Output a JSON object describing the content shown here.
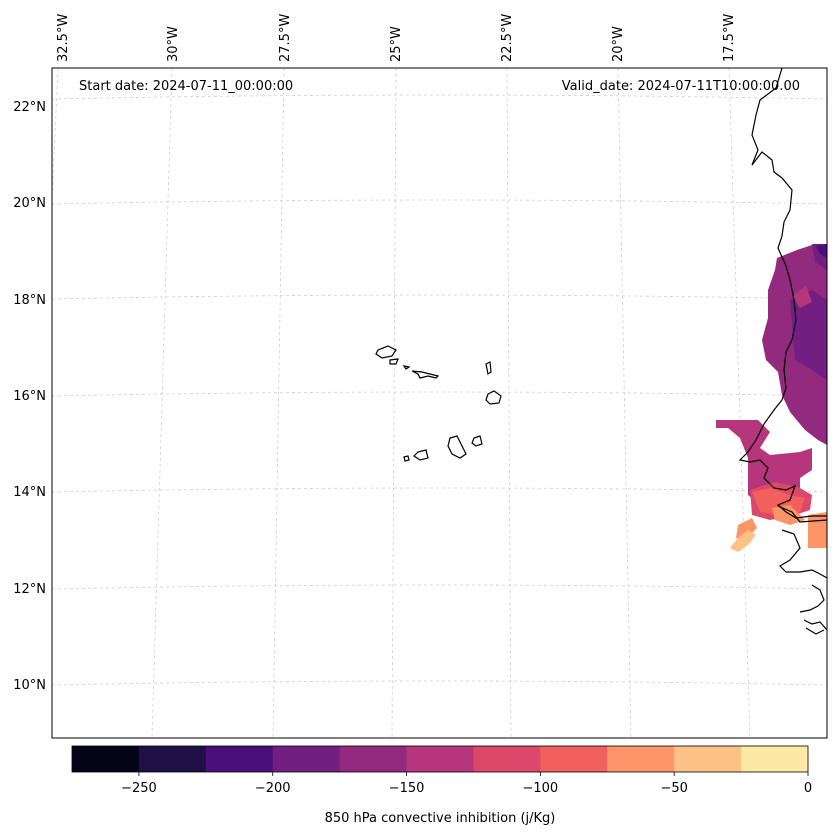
{
  "map": {
    "start_label": "Start date: 2024-07-11_00:00:00",
    "valid_label": "Valid_date: 2024-07-11T10:00:00.00",
    "lon_labels": [
      "32.5°W",
      "30°W",
      "27.5°W",
      "25°W",
      "22.5°W",
      "20°W",
      "17.5°W"
    ],
    "lat_labels": [
      "22°N",
      "20°N",
      "18°N",
      "16°N",
      "14°N",
      "12°N",
      "10°N"
    ],
    "extent": {
      "lon_min": -33.5,
      "lon_max": -15.0,
      "lat_min": 8.8,
      "lat_max": 22.8
    },
    "field": "850 hPa convective inhibition",
    "features": [
      "Cape Verde islands",
      "West African coastline (Senegal, Gambia, Guinea-Bissau, Mauritania)"
    ]
  },
  "colorbar": {
    "label": "850 hPa convective inhibition (j/Kg)",
    "ticks": [
      "−250",
      "−200",
      "−150",
      "−100",
      "−50",
      "0"
    ],
    "tick_values": [
      -250,
      -200,
      -150,
      -100,
      -50,
      0
    ],
    "range": [
      -275,
      0
    ],
    "bins": [
      {
        "min": -275,
        "max": -250,
        "color": "#050416"
      },
      {
        "min": -250,
        "max": -225,
        "color": "#1f1147"
      },
      {
        "min": -225,
        "max": -200,
        "color": "#4a0f7a"
      },
      {
        "min": -200,
        "max": -175,
        "color": "#721f81"
      },
      {
        "min": -175,
        "max": -150,
        "color": "#922a7e"
      },
      {
        "min": -150,
        "max": -125,
        "color": "#b5367a"
      },
      {
        "min": -125,
        "max": -100,
        "color": "#dc4869"
      },
      {
        "min": -100,
        "max": -75,
        "color": "#f1605d"
      },
      {
        "min": -75,
        "max": -50,
        "color": "#fd9567"
      },
      {
        "min": -50,
        "max": -25,
        "color": "#fec287"
      },
      {
        "min": -25,
        "max": 0,
        "color": "#fde9a6"
      }
    ]
  }
}
